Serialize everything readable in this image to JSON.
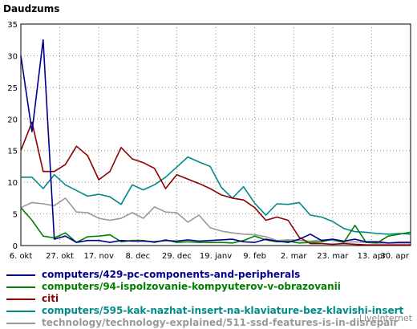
{
  "chart_data": {
    "type": "line",
    "title": "Daudzums",
    "xlabel": "",
    "ylabel": "",
    "ylim": [
      0,
      35
    ],
    "yticks": [
      0,
      5,
      10,
      15,
      20,
      25,
      30,
      35
    ],
    "grid": true,
    "legend_position": "bottom",
    "x_tick_labels": [
      "6. okt",
      "27. okt",
      "17. nov",
      "8. dec",
      "29. dec",
      "19. janv",
      "9. feb",
      "2. mar",
      "23. mar",
      "13. apr",
      "30. apr"
    ],
    "x": [
      0,
      1,
      2,
      3,
      4,
      5,
      6,
      7,
      8,
      9,
      10,
      11,
      12,
      13,
      14,
      15,
      16,
      17,
      18,
      19,
      20,
      21,
      22,
      23,
      24,
      25,
      26,
      27,
      28,
      29,
      30,
      31,
      32,
      33,
      34,
      35
    ],
    "series": [
      {
        "name": "computers/429-pc-components-and-peripherals",
        "color": "#00008b",
        "values": [
          30,
          18,
          32.5,
          1,
          1.5,
          0.5,
          0.8,
          0.8,
          0.5,
          0.8,
          0.7,
          0.7,
          0.6,
          0.8,
          0.7,
          0.9,
          0.7,
          0.8,
          0.9,
          1,
          0.6,
          0.5,
          1,
          0.7,
          0.5,
          1,
          1.8,
          0.8,
          1,
          0.7,
          1,
          0.6,
          0.6,
          0.4,
          0.5,
          0.5
        ]
      },
      {
        "name": "computers/94-ispolzovanie-kompyuterov-v-obrazovanii",
        "color": "#008000",
        "values": [
          6,
          4,
          1.5,
          1.2,
          2,
          0.5,
          1.4,
          1.5,
          1.7,
          0.6,
          0.8,
          0.8,
          0.5,
          0.9,
          0.5,
          0.6,
          0.5,
          0.5,
          0.5,
          0.4,
          0.8,
          1.5,
          0.9,
          0.6,
          0.7,
          0.4,
          0.5,
          0.6,
          1,
          0.5,
          3.2,
          0.5,
          0.4,
          1.5,
          1.8,
          2.1
        ]
      },
      {
        "name": "citi",
        "color": "#8b0000",
        "values": [
          15,
          19.5,
          11.7,
          11.7,
          12.8,
          15.7,
          14.2,
          10.4,
          11.7,
          15.5,
          13.7,
          13.1,
          12.2,
          9,
          11.2,
          10.5,
          9.8,
          9,
          8,
          7.5,
          7.2,
          6,
          4,
          4.5,
          4,
          1.3,
          0.3,
          0.3,
          0.2,
          0.3,
          0.2,
          0.1,
          0.1,
          0.1,
          0.1,
          0.1
        ]
      },
      {
        "name": "computers/595-kak-nazhat-insert-na-klaviature-bez-klavishi-insert",
        "color": "#008b8b",
        "values": [
          10.8,
          10.8,
          9,
          11.2,
          9.6,
          8.7,
          7.8,
          8.1,
          7.7,
          6.5,
          9.6,
          8.8,
          9.6,
          10.8,
          12.4,
          14,
          13.2,
          12.5,
          9.2,
          7.5,
          9.3,
          6.7,
          4.8,
          6.6,
          6.5,
          6.8,
          4.8,
          4.5,
          3.8,
          2.7,
          2.2,
          2.1,
          1.9,
          1.8,
          1.9,
          1.8
        ]
      },
      {
        "name": "technology/technology-explained/511-ssd-features-is-in-disrepair",
        "color": "#999999",
        "values": [
          6,
          6.8,
          6.6,
          6.3,
          7.5,
          5.3,
          5.2,
          4.3,
          4,
          4.3,
          5.2,
          4.3,
          6.1,
          5.3,
          5.2,
          3.7,
          4.8,
          2.8,
          2.3,
          2,
          1.8,
          1.7,
          1.4,
          0.8,
          0.9,
          0.8,
          0.7,
          0.9,
          0.8,
          0.5,
          0.6,
          0.5,
          0.4,
          0.4,
          0.4,
          0.4
        ]
      }
    ]
  },
  "watermark": "LiveInternet"
}
